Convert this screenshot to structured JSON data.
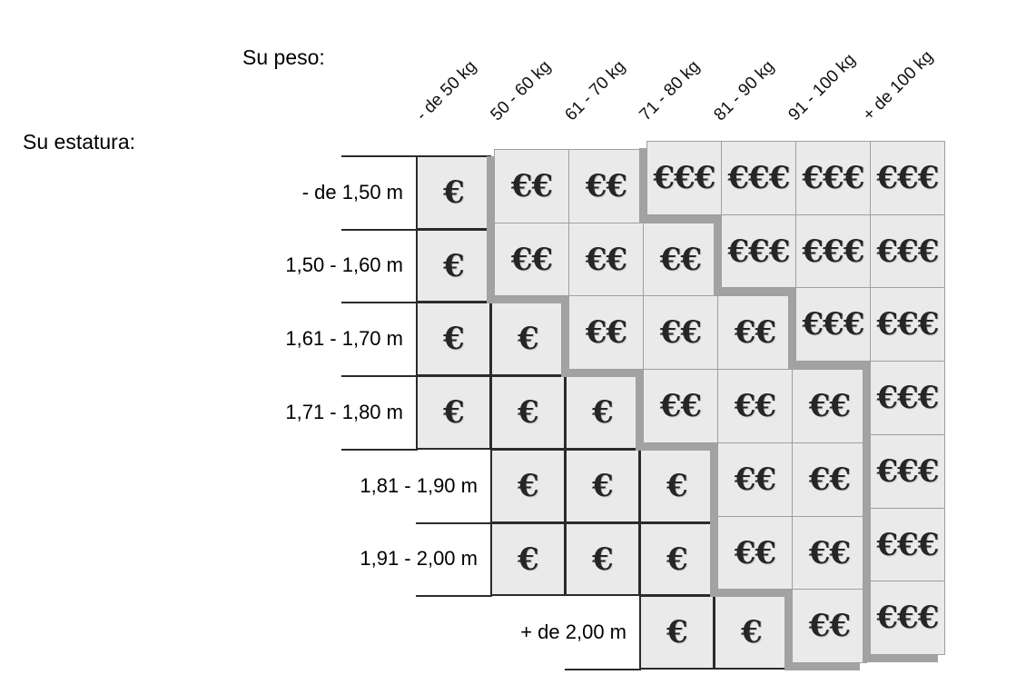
{
  "titles": {
    "weight": "Su peso:",
    "height": "Su estatura:"
  },
  "euro_symbol": "€",
  "colors": {
    "background": "#ffffff",
    "cell_fill": "#eaeaea",
    "shadow_band": "#a2a2a2",
    "border_dark": "#2b2b2b",
    "border_light": "#9f9f9f",
    "text": "#000000"
  },
  "chart_data": {
    "type": "heatmap",
    "title": "",
    "x_axis_label": "Su peso:",
    "y_axis_label": "Su estatura:",
    "x_categories": [
      "- de 50 kg",
      "50 - 60 kg",
      "61 - 70 kg",
      "71 - 80 kg",
      "81 - 90 kg",
      "91 - 100 kg",
      "+ de 100 kg"
    ],
    "y_categories": [
      "- de 1,50 m",
      "1,50 - 1,60 m",
      "1,61 - 1,70 m",
      "1,71 - 1,80 m",
      "1,81 - 1,90 m",
      "1,91 - 2,00 m",
      "+ de 2,00 m"
    ],
    "values": [
      [
        1,
        2,
        2,
        3,
        3,
        3,
        3
      ],
      [
        1,
        2,
        2,
        2,
        3,
        3,
        3
      ],
      [
        1,
        1,
        2,
        2,
        2,
        3,
        3
      ],
      [
        1,
        1,
        1,
        2,
        2,
        2,
        3
      ],
      [
        null,
        1,
        1,
        1,
        2,
        2,
        3
      ],
      [
        null,
        1,
        1,
        1,
        2,
        2,
        3
      ],
      [
        null,
        null,
        null,
        1,
        1,
        2,
        3
      ]
    ],
    "value_legend": "1 = €, 2 = €€, 3 = €€€ (price tier); empty = no cell",
    "legend_position": "none",
    "grid": true
  }
}
